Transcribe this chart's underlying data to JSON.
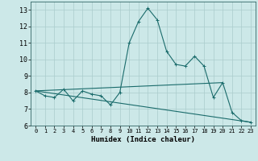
{
  "title": "",
  "xlabel": "Humidex (Indice chaleur)",
  "xlim": [
    -0.5,
    23.5
  ],
  "ylim": [
    6,
    13.5
  ],
  "yticks": [
    6,
    7,
    8,
    9,
    10,
    11,
    12,
    13
  ],
  "xticks": [
    0,
    1,
    2,
    3,
    4,
    5,
    6,
    7,
    8,
    9,
    10,
    11,
    12,
    13,
    14,
    15,
    16,
    17,
    18,
    19,
    20,
    21,
    22,
    23
  ],
  "background_color": "#cce8e8",
  "grid_color": "#aacccc",
  "line_color": "#1a6b6b",
  "line1_x": [
    0,
    1,
    2,
    3,
    4,
    5,
    6,
    7,
    8,
    9,
    10,
    11,
    12,
    13,
    14,
    15,
    16,
    17,
    18,
    19,
    20,
    21,
    22,
    23
  ],
  "line1_y": [
    8.1,
    7.8,
    7.7,
    8.2,
    7.5,
    8.1,
    7.9,
    7.8,
    7.25,
    8.0,
    11.0,
    12.3,
    13.1,
    12.4,
    10.5,
    9.7,
    9.6,
    10.2,
    9.6,
    7.7,
    8.6,
    6.8,
    6.3,
    6.2
  ],
  "line2_x": [
    0,
    23
  ],
  "line2_y": [
    8.1,
    6.2
  ],
  "line3_x": [
    0,
    20
  ],
  "line3_y": [
    8.1,
    8.6
  ]
}
